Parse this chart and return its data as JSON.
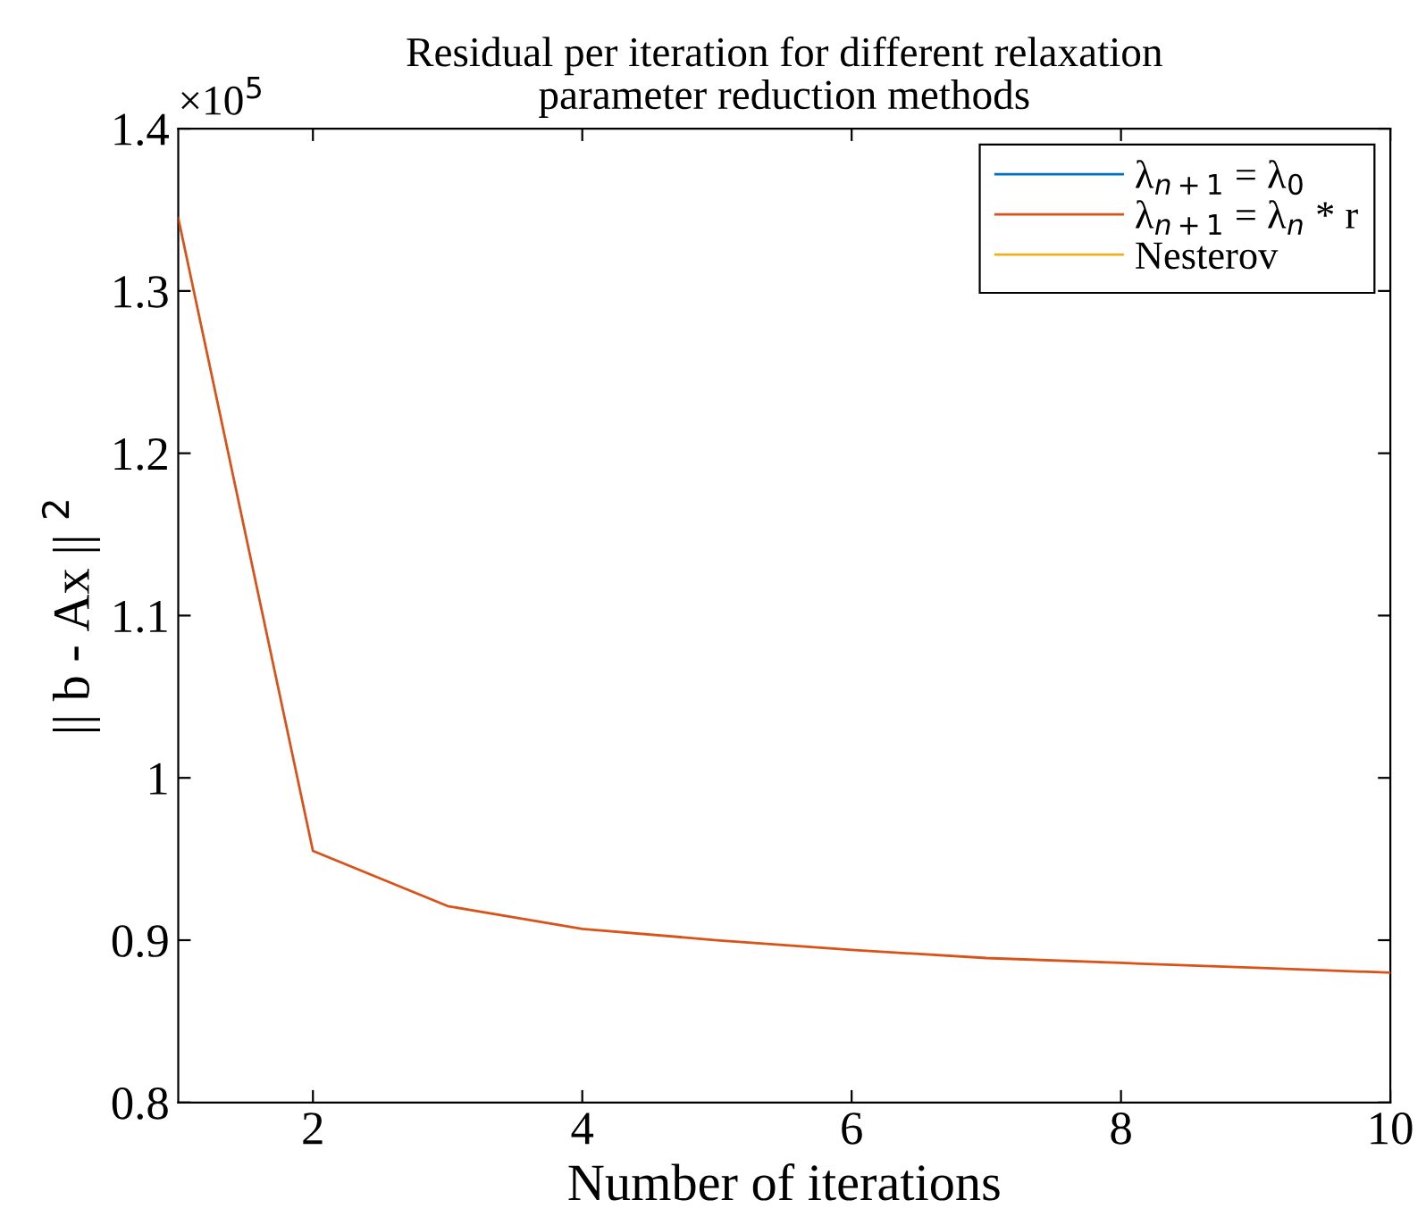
{
  "chart_data": {
    "type": "line",
    "title": "Residual per iteration for different relaxation\nparameter reduction methods",
    "xlabel": "Number of iterations",
    "ylabel": "|| b - Ax || $^{2}$",
    "annotations": [
      "×10$^{5}$"
    ],
    "x": [
      1,
      2,
      3,
      4,
      5,
      6,
      7,
      8,
      9,
      10
    ],
    "series": [
      {
        "name": "λ$_{n+1}$ = λ$_{0}$",
        "color": "#0072bd",
        "values": [
          null,
          null,
          null,
          null,
          null,
          null,
          null,
          null,
          null,
          null
        ]
      },
      {
        "name": "λ$_{n+1}$ = λ$_{n}$ * r",
        "color": "#d95319",
        "values": [
          1.345,
          0.955,
          0.921,
          0.907,
          0.9,
          0.894,
          0.889,
          0.886,
          0.883,
          0.88
        ]
      },
      {
        "name": "Nesterov",
        "color": "#edb120",
        "values": [
          null,
          null,
          null,
          null,
          null,
          null,
          null,
          null,
          null,
          null
        ]
      }
    ],
    "xlim": [
      1,
      10
    ],
    "xticks": [
      2,
      4,
      6,
      8,
      10
    ],
    "ylim": [
      0.8,
      1.4
    ],
    "yticks": [
      0.8,
      0.9,
      1,
      1.1,
      1.2,
      1.3,
      1.4
    ],
    "grid": false,
    "legend": "top right",
    "marker": "none",
    "line_style": "solid"
  }
}
